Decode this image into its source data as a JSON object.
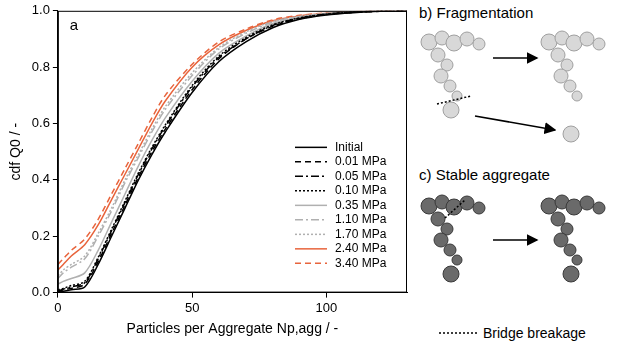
{
  "chart_data": {
    "type": "line",
    "panel_label": "a",
    "x_label": "Particles per Aggregate Np,agg / -",
    "y_label": "cdf Q0 / -",
    "x": [
      0,
      2,
      5,
      10,
      15,
      20,
      25,
      30,
      35,
      40,
      50,
      60,
      70,
      80,
      90,
      100,
      110,
      120,
      130
    ],
    "series": [
      {
        "name": "Initial",
        "color": "#000000",
        "line_style": "solid",
        "values": [
          0,
          0.005,
          0.01,
          0.02,
          0.1,
          0.2,
          0.3,
          0.4,
          0.49,
          0.57,
          0.71,
          0.82,
          0.89,
          0.94,
          0.97,
          0.985,
          0.993,
          0.998,
          1.0
        ]
      },
      {
        "name": "0.01 MPa",
        "color": "#000000",
        "line_style": "dashed",
        "values": [
          0,
          0.01,
          0.015,
          0.03,
          0.11,
          0.21,
          0.31,
          0.41,
          0.5,
          0.58,
          0.72,
          0.83,
          0.9,
          0.945,
          0.972,
          0.987,
          0.994,
          0.998,
          1.0
        ]
      },
      {
        "name": "0.05 MPa",
        "color": "#000000",
        "line_style": "dashdot",
        "values": [
          0.005,
          0.012,
          0.02,
          0.035,
          0.12,
          0.22,
          0.32,
          0.42,
          0.51,
          0.59,
          0.73,
          0.835,
          0.9,
          0.948,
          0.974,
          0.988,
          0.995,
          0.999,
          1.0
        ]
      },
      {
        "name": "0.10 MPa",
        "color": "#000000",
        "line_style": "dotted",
        "values": [
          0.01,
          0.015,
          0.025,
          0.04,
          0.125,
          0.225,
          0.325,
          0.425,
          0.515,
          0.595,
          0.735,
          0.84,
          0.905,
          0.95,
          0.975,
          0.988,
          0.995,
          0.999,
          1.0
        ]
      },
      {
        "name": "0.35 MPa",
        "color": "#b0b0b0",
        "line_style": "solid",
        "values": [
          0.03,
          0.04,
          0.05,
          0.07,
          0.15,
          0.25,
          0.35,
          0.45,
          0.54,
          0.62,
          0.75,
          0.85,
          0.91,
          0.955,
          0.977,
          0.99,
          0.996,
          0.999,
          1.0
        ]
      },
      {
        "name": "1.10 MPa",
        "color": "#b0b0b0",
        "line_style": "dashdot",
        "values": [
          0.05,
          0.07,
          0.09,
          0.12,
          0.2,
          0.29,
          0.39,
          0.48,
          0.57,
          0.65,
          0.77,
          0.865,
          0.92,
          0.96,
          0.98,
          0.99,
          0.996,
          0.999,
          1.0
        ]
      },
      {
        "name": "1.70 MPa",
        "color": "#b0b0b0",
        "line_style": "dotted",
        "values": [
          0.06,
          0.08,
          0.1,
          0.13,
          0.21,
          0.3,
          0.4,
          0.49,
          0.58,
          0.66,
          0.78,
          0.87,
          0.925,
          0.962,
          0.98,
          0.99,
          0.996,
          0.999,
          1.0
        ]
      },
      {
        "name": "2.40 MPa",
        "color": "#e8643c",
        "line_style": "solid",
        "values": [
          0.08,
          0.1,
          0.13,
          0.17,
          0.24,
          0.33,
          0.42,
          0.51,
          0.6,
          0.68,
          0.8,
          0.88,
          0.93,
          0.965,
          0.982,
          0.991,
          0.997,
          0.999,
          1.0
        ]
      },
      {
        "name": "3.40 MPa",
        "color": "#e8643c",
        "line_style": "dashed",
        "values": [
          0.1,
          0.12,
          0.15,
          0.19,
          0.26,
          0.35,
          0.44,
          0.53,
          0.62,
          0.7,
          0.81,
          0.89,
          0.935,
          0.968,
          0.984,
          0.992,
          0.997,
          0.999,
          1.0
        ]
      }
    ],
    "xlim": [
      0,
      130
    ],
    "xticks": [
      0,
      50,
      100
    ],
    "ylim": [
      0,
      1
    ],
    "yticks": [
      {
        "value": 0,
        "label": "0.0"
      },
      {
        "value": 0.2,
        "label": "0.2"
      },
      {
        "value": 0.4,
        "label": "0.4"
      },
      {
        "value": 0.6,
        "label": "0.6"
      },
      {
        "value": 0.8,
        "label": "0.8"
      },
      {
        "value": 1,
        "label": "1.0"
      }
    ],
    "grid": false,
    "legend": "lower right"
  },
  "diagram": {
    "panel_b": "b) Fragmentation",
    "panel_c": "c) Stable aggregate",
    "key": "Bridge breakage"
  }
}
